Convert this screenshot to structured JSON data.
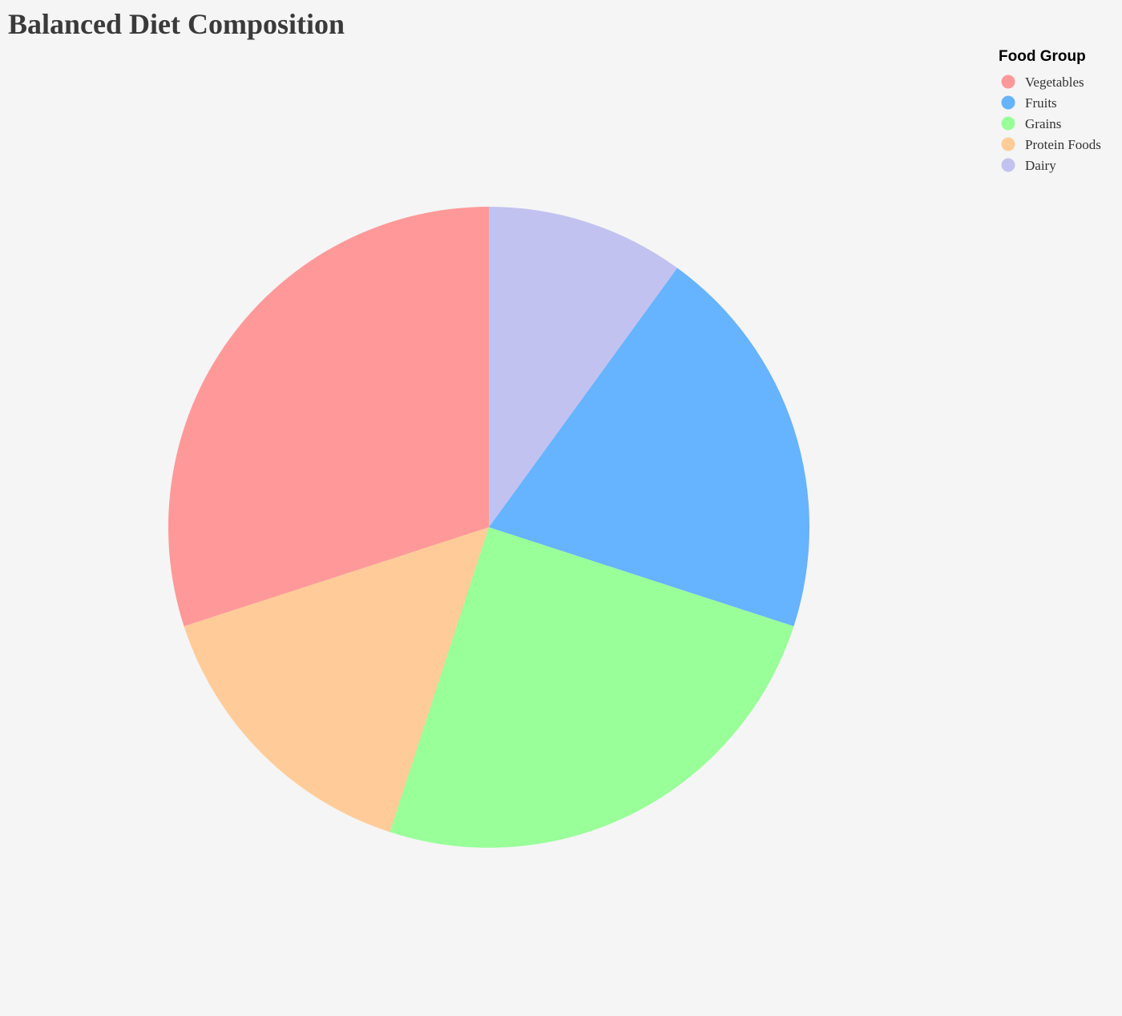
{
  "chart_data": {
    "type": "pie",
    "title": "Balanced Diet Composition",
    "legend_title": "Food Group",
    "legend_position": "top-right",
    "start_angle_deg": 0,
    "direction": "clockwise",
    "categories": [
      "Vegetables",
      "Fruits",
      "Grains",
      "Protein Foods",
      "Dairy"
    ],
    "values": [
      30,
      20,
      25,
      15,
      10
    ],
    "colors": [
      "#ff9999",
      "#66b3ff",
      "#99ff99",
      "#ffcc99",
      "#c2c2f0"
    ],
    "slice_order": [
      "Dairy",
      "Fruits",
      "Grains",
      "Protein Foods",
      "Vegetables"
    ]
  }
}
